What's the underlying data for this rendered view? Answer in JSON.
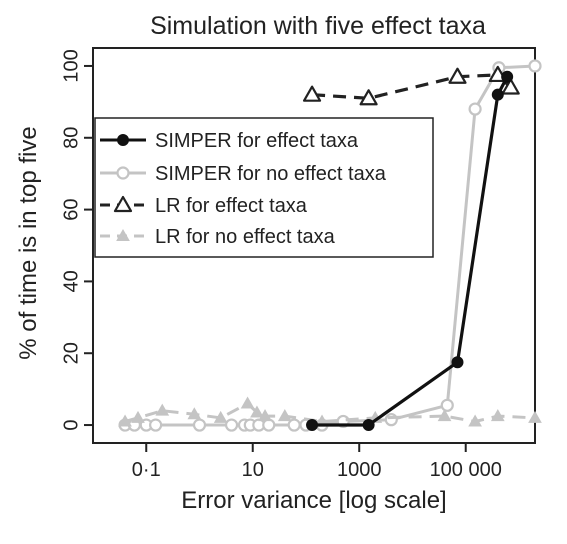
{
  "chart_data": {
    "type": "line",
    "title": "Simulation with five effect taxa",
    "xlabel": "Error variance [log scale]",
    "ylabel": "% of time is in top five",
    "x_scale": "log10",
    "xlim": [
      0.01,
      2000000
    ],
    "ylim": [
      -5,
      105
    ],
    "x_ticks": [
      {
        "value": 0.1,
        "label": "0·1"
      },
      {
        "value": 10,
        "label": "10"
      },
      {
        "value": 1000,
        "label": "1000"
      },
      {
        "value": 100000,
        "label": "100 000"
      }
    ],
    "y_ticks": [
      {
        "value": 0,
        "label": "0"
      },
      {
        "value": 20,
        "label": "20"
      },
      {
        "value": 40,
        "label": "40"
      },
      {
        "value": 60,
        "label": "60"
      },
      {
        "value": 80,
        "label": "80"
      },
      {
        "value": 100,
        "label": "100"
      }
    ],
    "grid": false,
    "legend_position": "center-left",
    "series": [
      {
        "name": "SIMPER for no effect taxa",
        "color": "#c4c4c4",
        "marker": "open-circle",
        "line": "solid",
        "points": [
          [
            0.04,
            0
          ],
          [
            0.06,
            0
          ],
          [
            0.1,
            0
          ],
          [
            0.15,
            0
          ],
          [
            1,
            0
          ],
          [
            4,
            0
          ],
          [
            7,
            0
          ],
          [
            9,
            0
          ],
          [
            13,
            0
          ],
          [
            20,
            0
          ],
          [
            60,
            0
          ],
          [
            100,
            0
          ],
          [
            200,
            0
          ],
          [
            500,
            1
          ],
          [
            4000,
            1.5
          ],
          [
            45000,
            5.5
          ],
          [
            150000,
            88
          ],
          [
            420000,
            99.5
          ],
          [
            2000000,
            100
          ]
        ]
      },
      {
        "name": "LR for no effect taxa",
        "color": "#c4c4c4",
        "marker": "filled-triangle",
        "line": "dashed",
        "points": [
          [
            0.04,
            1
          ],
          [
            0.07,
            2
          ],
          [
            0.2,
            4
          ],
          [
            0.8,
            3
          ],
          [
            2.5,
            2
          ],
          [
            8,
            6
          ],
          [
            12,
            3.5
          ],
          [
            17,
            2.5
          ],
          [
            40,
            2.5
          ],
          [
            200,
            1
          ],
          [
            2000,
            2
          ],
          [
            40000,
            2.5
          ],
          [
            150000,
            1
          ],
          [
            400000,
            2.5
          ],
          [
            2000000,
            2
          ]
        ]
      },
      {
        "name": "LR for effect taxa",
        "color": "#222222",
        "marker": "open-triangle",
        "line": "dashed",
        "points": [
          [
            130,
            92
          ],
          [
            1500,
            91
          ],
          [
            70000,
            97
          ],
          [
            400000,
            97.5
          ],
          [
            700000,
            94
          ]
        ]
      },
      {
        "name": "SIMPER for effect taxa",
        "color": "#111111",
        "marker": "filled-circle",
        "line": "solid",
        "points": [
          [
            130,
            0
          ],
          [
            1500,
            0
          ],
          [
            70000,
            17.5
          ],
          [
            400000,
            92
          ],
          [
            600000,
            97
          ]
        ]
      }
    ],
    "legend_order": [
      "SIMPER for effect taxa",
      "SIMPER for no effect taxa",
      "LR for effect taxa",
      "LR for no effect taxa"
    ]
  }
}
